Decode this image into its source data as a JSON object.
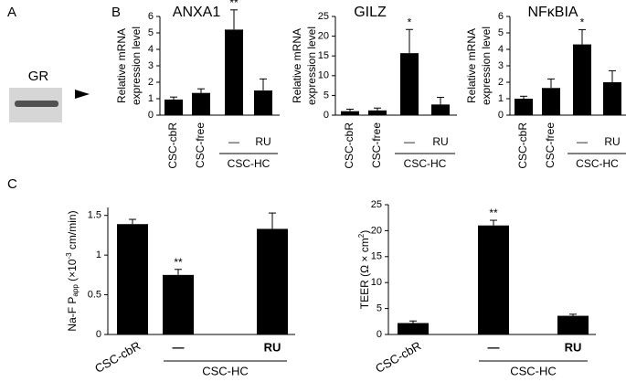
{
  "panel_labels": [
    "A",
    "B",
    "C"
  ],
  "blot": {
    "label": "GR"
  },
  "chart_data": [
    {
      "type": "bar",
      "title": "ANXA1",
      "ylabel": [
        "Relative mRNA",
        "expression level"
      ],
      "categories": [
        "CSC-cbR",
        "CSC-free",
        "—",
        "RU"
      ],
      "group_label": "CSC-HC",
      "values": [
        0.95,
        1.35,
        5.2,
        1.5
      ],
      "errors": [
        0.15,
        0.25,
        1.2,
        0.7
      ],
      "significance": [
        null,
        null,
        "**",
        null
      ],
      "color": "#000000",
      "ylim": [
        0,
        6
      ],
      "yticks": [
        0,
        1,
        2,
        3,
        4,
        5,
        6
      ]
    },
    {
      "type": "bar",
      "title": "GILZ",
      "ylabel": [
        "Relative mRNA",
        "expression level"
      ],
      "categories": [
        "CSC-cbR",
        "CSC-free",
        "—",
        "RU"
      ],
      "group_label": "CSC-HC",
      "values": [
        1.0,
        1.2,
        15.7,
        2.7
      ],
      "errors": [
        0.5,
        0.6,
        6.0,
        1.8
      ],
      "significance": [
        null,
        null,
        "*",
        null
      ],
      "color": "#000000",
      "ylim": [
        0,
        25
      ],
      "yticks": [
        0,
        5,
        10,
        15,
        20,
        25
      ]
    },
    {
      "type": "bar",
      "title": "NFκBIA",
      "ylabel": [
        "Relative mRNA",
        "expression level"
      ],
      "categories": [
        "CSC-cbR",
        "CSC-free",
        "—",
        "RU"
      ],
      "group_label": "CSC-HC",
      "values": [
        1.0,
        1.65,
        4.3,
        2.0
      ],
      "errors": [
        0.15,
        0.55,
        0.9,
        0.7
      ],
      "significance": [
        null,
        null,
        "*",
        null
      ],
      "color": "#000000",
      "ylim": [
        0,
        6
      ],
      "yticks": [
        0,
        1,
        2,
        3,
        4,
        5,
        6
      ]
    },
    {
      "type": "bar",
      "ylabel": [
        "Na-F P",
        "app",
        " (×10",
        "-3",
        " cm/min)"
      ],
      "categories": [
        "CSC-cbR",
        "—",
        "RU"
      ],
      "group_label": "CSC-HC",
      "values": [
        1.39,
        0.75,
        1.33
      ],
      "errors": [
        0.06,
        0.07,
        0.2
      ],
      "significance": [
        null,
        "**",
        null
      ],
      "color": "#000000",
      "ylim": [
        0,
        1.6
      ],
      "yticks": [
        0,
        0.5,
        1,
        1.5
      ]
    },
    {
      "type": "bar",
      "ylabel": [
        "TEER (Ω × cm",
        "2",
        ")"
      ],
      "categories": [
        "CSC-cbR",
        "—",
        "RU"
      ],
      "group_label": "CSC-HC",
      "values": [
        2.2,
        21.0,
        3.6
      ],
      "errors": [
        0.4,
        1.0,
        0.3
      ],
      "significance": [
        null,
        "**",
        null
      ],
      "color": "#000000",
      "ylim": [
        0,
        25
      ],
      "yticks": [
        0,
        5,
        10,
        15,
        20,
        25
      ]
    }
  ]
}
